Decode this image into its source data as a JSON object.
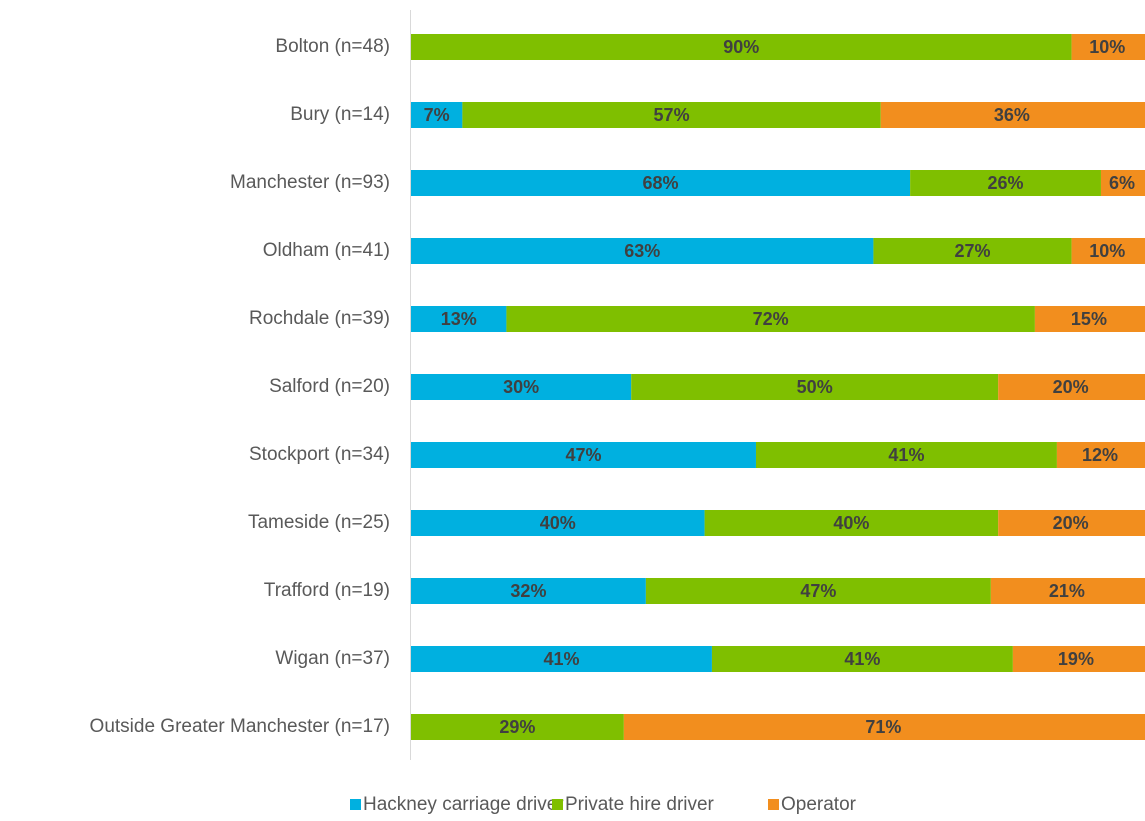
{
  "chart_data": {
    "type": "stacked_barh",
    "categories": [
      "Bolton (n=48)",
      "Bury (n=14)",
      "Manchester (n=93)",
      "Oldham (n=41)",
      "Rochdale (n=39)",
      "Salford (n=20)",
      "Stockport (n=34)",
      "Tameside (n=25)",
      "Trafford (n=19)",
      "Wigan (n=37)",
      "Outside Greater Manchester (n=17)"
    ],
    "series": [
      {
        "name": "Hackney carriage driver",
        "color": "#00b0e0",
        "values": [
          0,
          7,
          68,
          63,
          13,
          30,
          47,
          40,
          32,
          41,
          0
        ],
        "value_labels": [
          null,
          "7%",
          "68%",
          "63%",
          "13%",
          "30%",
          "47%",
          "40%",
          "32%",
          "41%",
          null
        ]
      },
      {
        "name": "Private hire driver",
        "color": "#7fbf00",
        "values": [
          90,
          57,
          26,
          27,
          72,
          50,
          41,
          40,
          47,
          41,
          29
        ],
        "value_labels": [
          "90%",
          "57%",
          "26%",
          "27%",
          "72%",
          "50%",
          "41%",
          "40%",
          "47%",
          "41%",
          "29%"
        ]
      },
      {
        "name": "Operator",
        "color": "#f28e1e",
        "values": [
          10,
          36,
          6,
          10,
          15,
          20,
          12,
          20,
          21,
          19,
          71
        ],
        "value_labels": [
          "10%",
          "36%",
          "6%",
          "10%",
          "15%",
          "20%",
          "12%",
          "20%",
          "21%",
          "19%",
          "71%"
        ]
      }
    ],
    "xlim": [
      0,
      100
    ],
    "legend": "bottom"
  }
}
